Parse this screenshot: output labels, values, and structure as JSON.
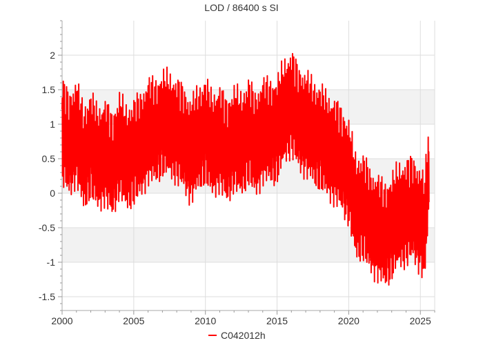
{
  "chart_data": {
    "type": "line",
    "title": "LOD / 86400 s SI",
    "xlabel": "",
    "ylabel": "",
    "xlim": [
      2000,
      2026
    ],
    "ylim": [
      -1.7,
      2.5
    ],
    "x_ticks": [
      2000,
      2005,
      2010,
      2015,
      2020,
      2025
    ],
    "x_tick_labels": [
      "2000",
      "2005",
      "2010",
      "2015",
      "2020",
      "2025"
    ],
    "y_ticks": [
      -1.5,
      -1,
      -0.5,
      0,
      0.5,
      1,
      1.5,
      2
    ],
    "y_tick_labels": [
      "-1.5",
      "-1",
      "-0.5",
      "0",
      "0.5",
      "1",
      "1.5",
      "2"
    ],
    "y_minor_step": 0.1,
    "x_minor_step": 1,
    "grid": true,
    "shaded_bands": [
      [
        -1,
        -0.5
      ],
      [
        0,
        0.5
      ],
      [
        1,
        1.5
      ]
    ],
    "legend_position": "bottom-center",
    "series": [
      {
        "name": "C042012h",
        "color": "#ff0000",
        "x": [
          2000.0,
          2000.5,
          2001.0,
          2001.5,
          2002.0,
          2002.5,
          2003.0,
          2003.5,
          2004.0,
          2004.5,
          2005.0,
          2005.5,
          2006.0,
          2006.5,
          2007.0,
          2007.5,
          2008.0,
          2008.5,
          2009.0,
          2009.5,
          2010.0,
          2010.5,
          2011.0,
          2011.5,
          2012.0,
          2012.5,
          2013.0,
          2013.5,
          2014.0,
          2014.5,
          2015.0,
          2015.5,
          2016.0,
          2016.5,
          2017.0,
          2017.5,
          2018.0,
          2018.5,
          2019.0,
          2019.5,
          2020.0,
          2020.5,
          2021.0,
          2021.5,
          2022.0,
          2022.5,
          2023.0,
          2023.5,
          2024.0,
          2024.5,
          2025.0,
          2025.3,
          2025.6
        ],
        "y": [
          0.9,
          0.6,
          0.9,
          0.4,
          0.7,
          0.4,
          0.6,
          0.3,
          0.7,
          0.4,
          0.6,
          0.6,
          0.9,
          0.8,
          1.0,
          0.9,
          0.9,
          0.7,
          0.6,
          0.7,
          0.9,
          0.6,
          0.8,
          0.5,
          0.8,
          0.6,
          0.9,
          0.6,
          0.9,
          0.8,
          0.9,
          1.1,
          1.3,
          1.0,
          1.0,
          0.8,
          0.8,
          0.6,
          0.6,
          0.4,
          0.3,
          -0.3,
          -0.2,
          -0.5,
          -0.5,
          -0.7,
          -0.5,
          -0.4,
          -0.3,
          -0.3,
          -0.4,
          -0.6,
          0.3
        ]
      }
    ]
  }
}
